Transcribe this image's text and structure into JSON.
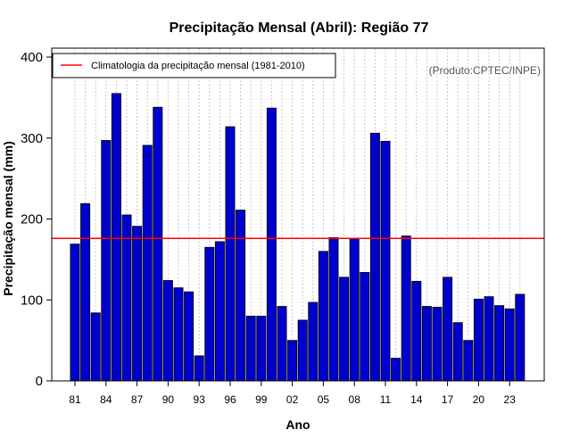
{
  "chart_data": {
    "type": "bar",
    "title": "Precipitação Mensal (Abril): Região 77",
    "xlabel": "Ano",
    "ylabel": "Precipitação mensal (mm)",
    "credit": "(Produto:CPTEC/INPE)",
    "ylim": [
      0,
      400
    ],
    "yticks": [
      0,
      100,
      200,
      300,
      400
    ],
    "grid": true,
    "legend_position": "top-left",
    "categories": [
      "81",
      "82",
      "83",
      "84",
      "85",
      "86",
      "87",
      "88",
      "89",
      "90",
      "91",
      "92",
      "93",
      "94",
      "95",
      "96",
      "97",
      "98",
      "99",
      "00",
      "01",
      "02",
      "03",
      "04",
      "05",
      "06",
      "07",
      "08",
      "09",
      "10",
      "11",
      "12",
      "13",
      "14",
      "15",
      "16",
      "17",
      "18",
      "19",
      "20",
      "21",
      "22",
      "23",
      "24"
    ],
    "xtick_labels": [
      "81",
      "84",
      "87",
      "90",
      "93",
      "96",
      "99",
      "02",
      "05",
      "08",
      "11",
      "14",
      "17",
      "20",
      "23"
    ],
    "series": [
      {
        "name": "Precipitação mensal",
        "color": "#0000cc",
        "values": [
          169,
          219,
          84,
          297,
          355,
          205,
          191,
          291,
          338,
          124,
          115,
          110,
          31,
          165,
          172,
          314,
          211,
          80,
          80,
          337,
          92,
          50,
          75,
          97,
          160,
          177,
          128,
          176,
          134,
          306,
          296,
          28,
          179,
          123,
          92,
          91,
          128,
          72,
          50,
          101,
          104,
          93,
          89,
          107
        ]
      }
    ],
    "reference_line": {
      "label": "Climatologia da precipitação mensal (1981-2010)",
      "value": 176,
      "color": "#ff0000"
    }
  }
}
